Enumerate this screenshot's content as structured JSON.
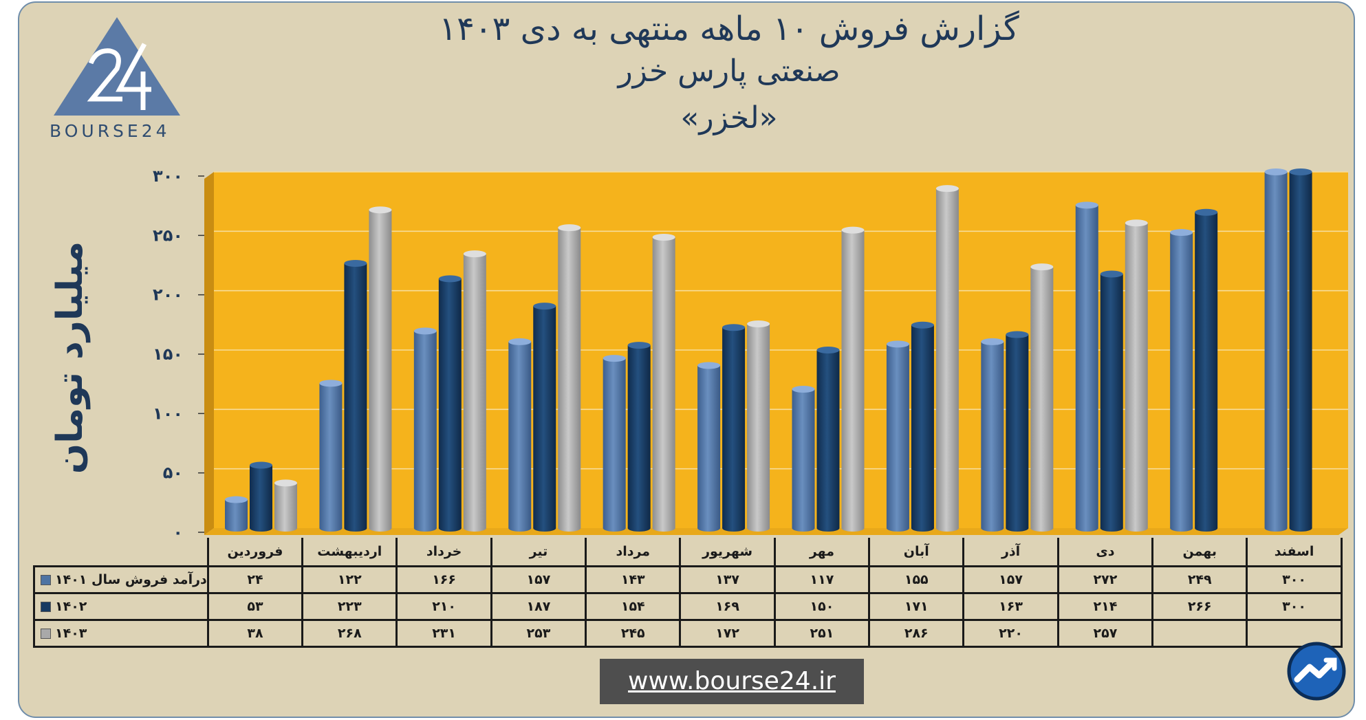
{
  "header": {
    "title_line1": "گزارش  فروش ۱۰ ماهه منتهی به دی ۱۴۰۳",
    "title_line2": "صنعتی پارس خزر",
    "title_line3": "«لخزر»"
  },
  "logo": {
    "text": "BOURSE24",
    "mark": "24"
  },
  "footer": {
    "website": "www.bourse24.ir"
  },
  "colors": {
    "background": "#ddd3b6",
    "plot": "#f5b31c",
    "s1401": "#4f74a3",
    "s1402": "#173a62",
    "s1403": "#a9a9a9",
    "text": "#1f3858"
  },
  "chart_data": {
    "type": "bar",
    "title": "گزارش  فروش ۱۰ ماهه منتهی به دی ۱۴۰۳",
    "ylabel": "میلیارد تومان",
    "ylim": [
      0,
      300
    ],
    "yticks": [
      "۰",
      "۵۰",
      "۱۰۰",
      "۱۵۰",
      "۲۰۰",
      "۲۵۰",
      "۳۰۰"
    ],
    "categories": [
      "فروردین",
      "اردیبهشت",
      "خرداد",
      "تیر",
      "مرداد",
      "شهریور",
      "مهر",
      "آبان",
      "آذر",
      "دی",
      "بهمن",
      "اسفند"
    ],
    "series": [
      {
        "name": "درآمد فروش سال ۱۴۰۱",
        "values": [
          24,
          122,
          166,
          157,
          143,
          137,
          117,
          155,
          157,
          272,
          249,
          300
        ],
        "labels": [
          "۲۴",
          "۱۲۲",
          "۱۶۶",
          "۱۵۷",
          "۱۴۳",
          "۱۳۷",
          "۱۱۷",
          "۱۵۵",
          "۱۵۷",
          "۲۷۲",
          "۲۴۹",
          "۳۰۰"
        ]
      },
      {
        "name": "۱۴۰۲",
        "values": [
          53,
          223,
          210,
          187,
          154,
          169,
          150,
          171,
          163,
          214,
          266,
          300
        ],
        "labels": [
          "۵۳",
          "۲۲۳",
          "۲۱۰",
          "۱۸۷",
          "۱۵۴",
          "۱۶۹",
          "۱۵۰",
          "۱۷۱",
          "۱۶۳",
          "۲۱۴",
          "۲۶۶",
          "۳۰۰"
        ]
      },
      {
        "name": "۱۴۰۳",
        "values": [
          38,
          268,
          231,
          253,
          245,
          172,
          251,
          286,
          220,
          257,
          null,
          null
        ],
        "labels": [
          "۳۸",
          "۲۶۸",
          "۲۳۱",
          "۲۵۳",
          "۲۴۵",
          "۱۷۲",
          "۲۵۱",
          "۲۸۶",
          "۲۲۰",
          "۲۵۷",
          "",
          ""
        ]
      }
    ],
    "grid": true,
    "legend": "table-left"
  }
}
